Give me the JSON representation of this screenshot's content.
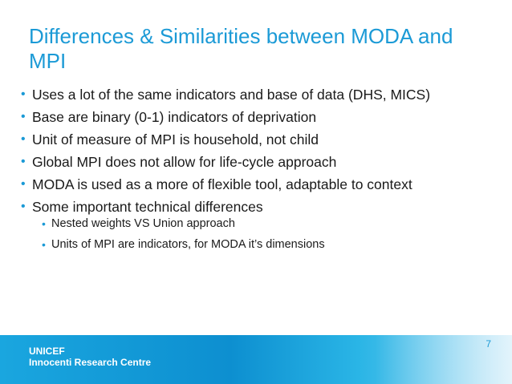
{
  "slide": {
    "title": "Differences & Similarities between MODA and MPI",
    "bullets": [
      "Uses a lot of the same indicators and base of data (DHS, MICS)",
      "Base are binary (0-1) indicators of deprivation",
      "Unit of measure of MPI is household, not child",
      "Global MPI does not allow for life-cycle approach",
      "MODA is used as a more of flexible tool, adaptable to context",
      "Some important technical differences"
    ],
    "sub_bullets": [
      "Nested weights VS Union approach",
      "Units of MPI are indicators, for MODA it’s dimensions"
    ],
    "bullet_glyph": "•",
    "footer": {
      "line1": "UNICEF",
      "line2": "Innocenti Research Centre"
    },
    "page_number": "7"
  },
  "colors": {
    "accent": "#1b9ad6",
    "footer_band": "#0d8fd0"
  }
}
